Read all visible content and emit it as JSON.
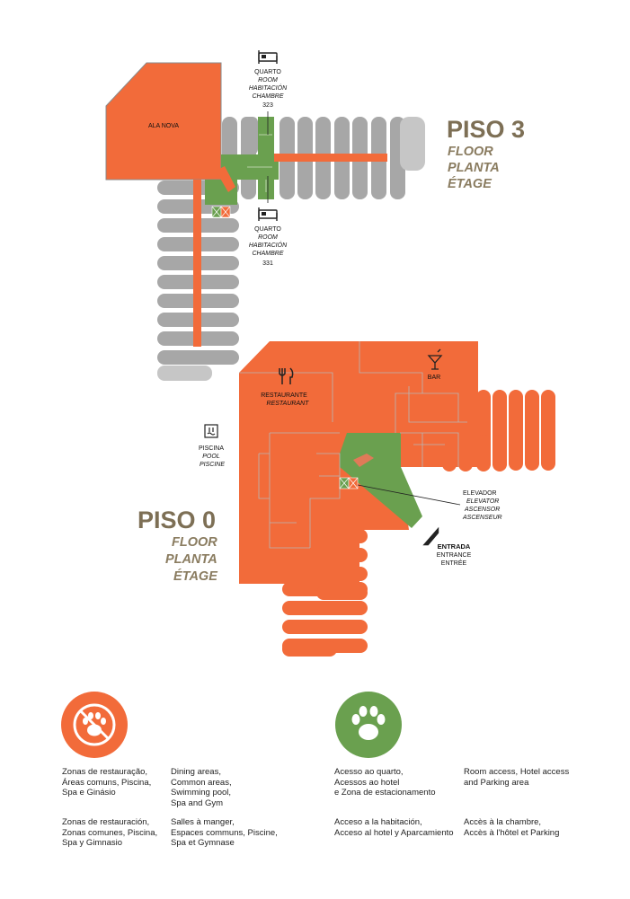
{
  "floor3": {
    "title": "PISO 3",
    "subtitle": [
      "FLOOR",
      "PLANTA",
      "ÉTAGE"
    ],
    "wing_label": "ALA NOVA",
    "room_top": {
      "lines": [
        "QUARTO",
        "ROOM",
        "HABITACIÓN",
        "CHAMBRE"
      ],
      "number": "323"
    },
    "room_bottom": {
      "lines": [
        "QUARTO",
        "ROOM",
        "HABITACIÓN",
        "CHAMBRE"
      ],
      "number": "331"
    }
  },
  "floor0": {
    "title": "PISO 0",
    "subtitle": [
      "FLOOR",
      "PLANTA",
      "ÉTAGE"
    ],
    "restaurant": [
      "RESTAURANTE",
      "RESTAURANT"
    ],
    "bar": "BAR",
    "pool": [
      "PISCINA",
      "POOL",
      "PISCINE"
    ],
    "elevator": [
      "ELEVADOR",
      "ELEVATOR",
      "ASCENSOR",
      "ASCENSEUR"
    ],
    "entrance": [
      "ENTRADA",
      "ENTRANCE",
      "ENTRÉE"
    ]
  },
  "colors": {
    "orange": "#f26b3a",
    "green": "#6aa04f",
    "gray": "#a7a7a7",
    "brown": "#7d6f55"
  },
  "legend": {
    "no_pets": {
      "icon": "no-paw-icon",
      "pt": [
        "Zonas de restauração,",
        "Áreas comuns, Piscina,",
        "Spa e Ginásio"
      ],
      "en": [
        "Dining areas,",
        "Common areas,",
        "Swimming pool,",
        "Spa and Gym"
      ],
      "es": [
        "Zonas de restauración,",
        "Zonas comunes, Piscina,",
        "Spa y Gimnasio"
      ],
      "fr": [
        "Salles à manger,",
        "Espaces communs, Piscine,",
        "Spa et Gymnase"
      ]
    },
    "pets": {
      "icon": "paw-icon",
      "pt": [
        "Acesso ao quarto,",
        "Acessos ao hotel",
        "e Zona de estacionamento"
      ],
      "en": [
        "Room access, Hotel access",
        "and Parking area"
      ],
      "es": [
        "Acceso a la habitación,",
        "Acceso al hotel y Aparcamiento"
      ],
      "fr": [
        "Accès à la chambre,",
        "Accès à l'hôtel et Parking"
      ]
    }
  }
}
